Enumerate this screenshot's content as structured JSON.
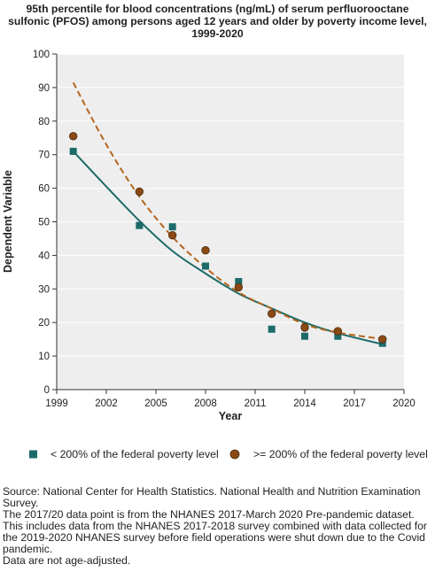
{
  "chart_data": {
    "type": "line",
    "title_lines": [
      "95th percentile for blood concentrations (ng/mL) of serum perfluorooctane",
      "sulfonic (PFOS) among persons aged 12 years and older by poverty income level,",
      "1999-2020"
    ],
    "xlabel": "Year",
    "ylabel": "Dependent Variable",
    "xlim": [
      1999,
      2020
    ],
    "ylim": [
      0,
      100
    ],
    "x_ticks": [
      1999,
      2002,
      2005,
      2008,
      2011,
      2014,
      2017,
      2020
    ],
    "y_ticks": [
      0,
      10,
      20,
      30,
      40,
      50,
      60,
      70,
      80,
      90,
      100
    ],
    "grid": true,
    "legend_position": "bottom",
    "series": [
      {
        "name": "< 200% of the federal poverty level",
        "color": "#1c6b68",
        "marker": "square",
        "line_style": "solid",
        "points": [
          {
            "x": 2000.0,
            "y": 71.0
          },
          {
            "x": 2004.0,
            "y": 48.9
          },
          {
            "x": 2006.0,
            "y": 48.5
          },
          {
            "x": 2008.0,
            "y": 36.8
          },
          {
            "x": 2010.0,
            "y": 32.2
          },
          {
            "x": 2012.0,
            "y": 18.0
          },
          {
            "x": 2014.0,
            "y": 15.9
          },
          {
            "x": 2016.0,
            "y": 15.9
          },
          {
            "x": 2018.7,
            "y": 13.8
          }
        ],
        "trend": [
          {
            "x": 2000.0,
            "y": 71.0
          },
          {
            "x": 2002.0,
            "y": 60.5
          },
          {
            "x": 2004.0,
            "y": 50.3
          },
          {
            "x": 2006.0,
            "y": 41.3
          },
          {
            "x": 2008.0,
            "y": 34.6
          },
          {
            "x": 2010.0,
            "y": 28.6
          },
          {
            "x": 2012.0,
            "y": 24.2
          },
          {
            "x": 2014.0,
            "y": 20.0
          },
          {
            "x": 2016.0,
            "y": 16.8
          },
          {
            "x": 2018.7,
            "y": 13.5
          }
        ]
      },
      {
        "name": ">= 200% of the federal poverty level",
        "color": "#8b4a14",
        "marker": "circle",
        "line_style": "dashed",
        "trend_color": "#b5651d",
        "points": [
          {
            "x": 2000.0,
            "y": 75.5
          },
          {
            "x": 2004.0,
            "y": 59.0
          },
          {
            "x": 2006.0,
            "y": 46.0
          },
          {
            "x": 2008.0,
            "y": 41.5
          },
          {
            "x": 2010.0,
            "y": 30.5
          },
          {
            "x": 2012.0,
            "y": 22.6
          },
          {
            "x": 2014.0,
            "y": 18.5
          },
          {
            "x": 2016.0,
            "y": 17.4
          },
          {
            "x": 2018.7,
            "y": 15.0
          }
        ],
        "trend": [
          {
            "x": 2000.0,
            "y": 91.5
          },
          {
            "x": 2002.0,
            "y": 73.0
          },
          {
            "x": 2004.0,
            "y": 57.5
          },
          {
            "x": 2006.0,
            "y": 45.5
          },
          {
            "x": 2008.0,
            "y": 36.3
          },
          {
            "x": 2010.0,
            "y": 29.0
          },
          {
            "x": 2012.0,
            "y": 24.1
          },
          {
            "x": 2014.0,
            "y": 19.5
          },
          {
            "x": 2016.0,
            "y": 17.0
          },
          {
            "x": 2018.7,
            "y": 15.1
          }
        ]
      }
    ]
  },
  "notes": [
    "Source: National Center for Health Statistics. National Health and Nutrition Examination Survey.",
    "The 2017/20 data point is from the NHANES 2017-March 2020 Pre-pandemic dataset. This includes data from the NHANES 2017-2018 survey combined with data collected for the 2019-2020 NHANES survey before field operations were shut down due to the Covid pandemic.",
    "Data are not age-adjusted."
  ]
}
